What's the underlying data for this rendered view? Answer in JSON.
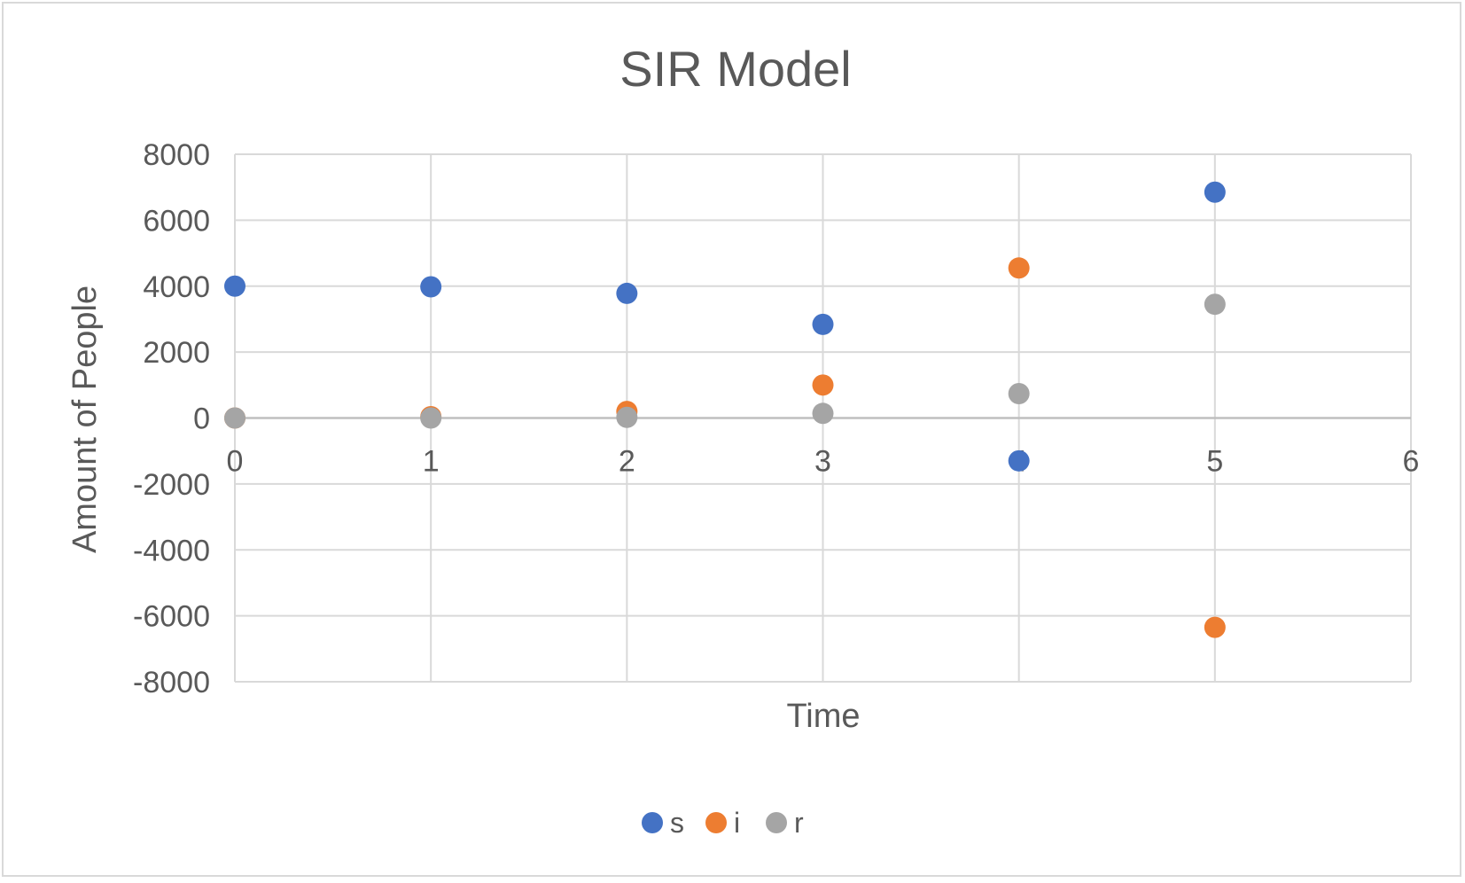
{
  "chart_data": {
    "type": "scatter",
    "title": "SIR Model",
    "xlabel": "Time",
    "ylabel": "Amount of People",
    "xlim": [
      0,
      6
    ],
    "ylim": [
      -8000,
      8000
    ],
    "x_ticks": [
      "0",
      "1",
      "2",
      "3",
      "4",
      "5",
      "6"
    ],
    "y_ticks": [
      "8000",
      "6000",
      "4000",
      "2000",
      "0",
      "-2000",
      "-4000",
      "-6000",
      "-8000"
    ],
    "grid": true,
    "legend_position": "bottom",
    "series": [
      {
        "name": "s",
        "color": "#4472c4",
        "x": [
          0,
          1,
          2,
          3,
          4,
          5
        ],
        "y": [
          4000,
          3980,
          3780,
          2840,
          -1300,
          6850
        ]
      },
      {
        "name": "i",
        "color": "#ed7d31",
        "x": [
          0,
          1,
          2,
          3,
          4,
          5
        ],
        "y": [
          0,
          40,
          200,
          1000,
          4550,
          -6350
        ]
      },
      {
        "name": "r",
        "color": "#a5a5a5",
        "x": [
          0,
          1,
          2,
          3,
          4,
          5
        ],
        "y": [
          0,
          0,
          20,
          140,
          740,
          3450
        ]
      }
    ]
  }
}
